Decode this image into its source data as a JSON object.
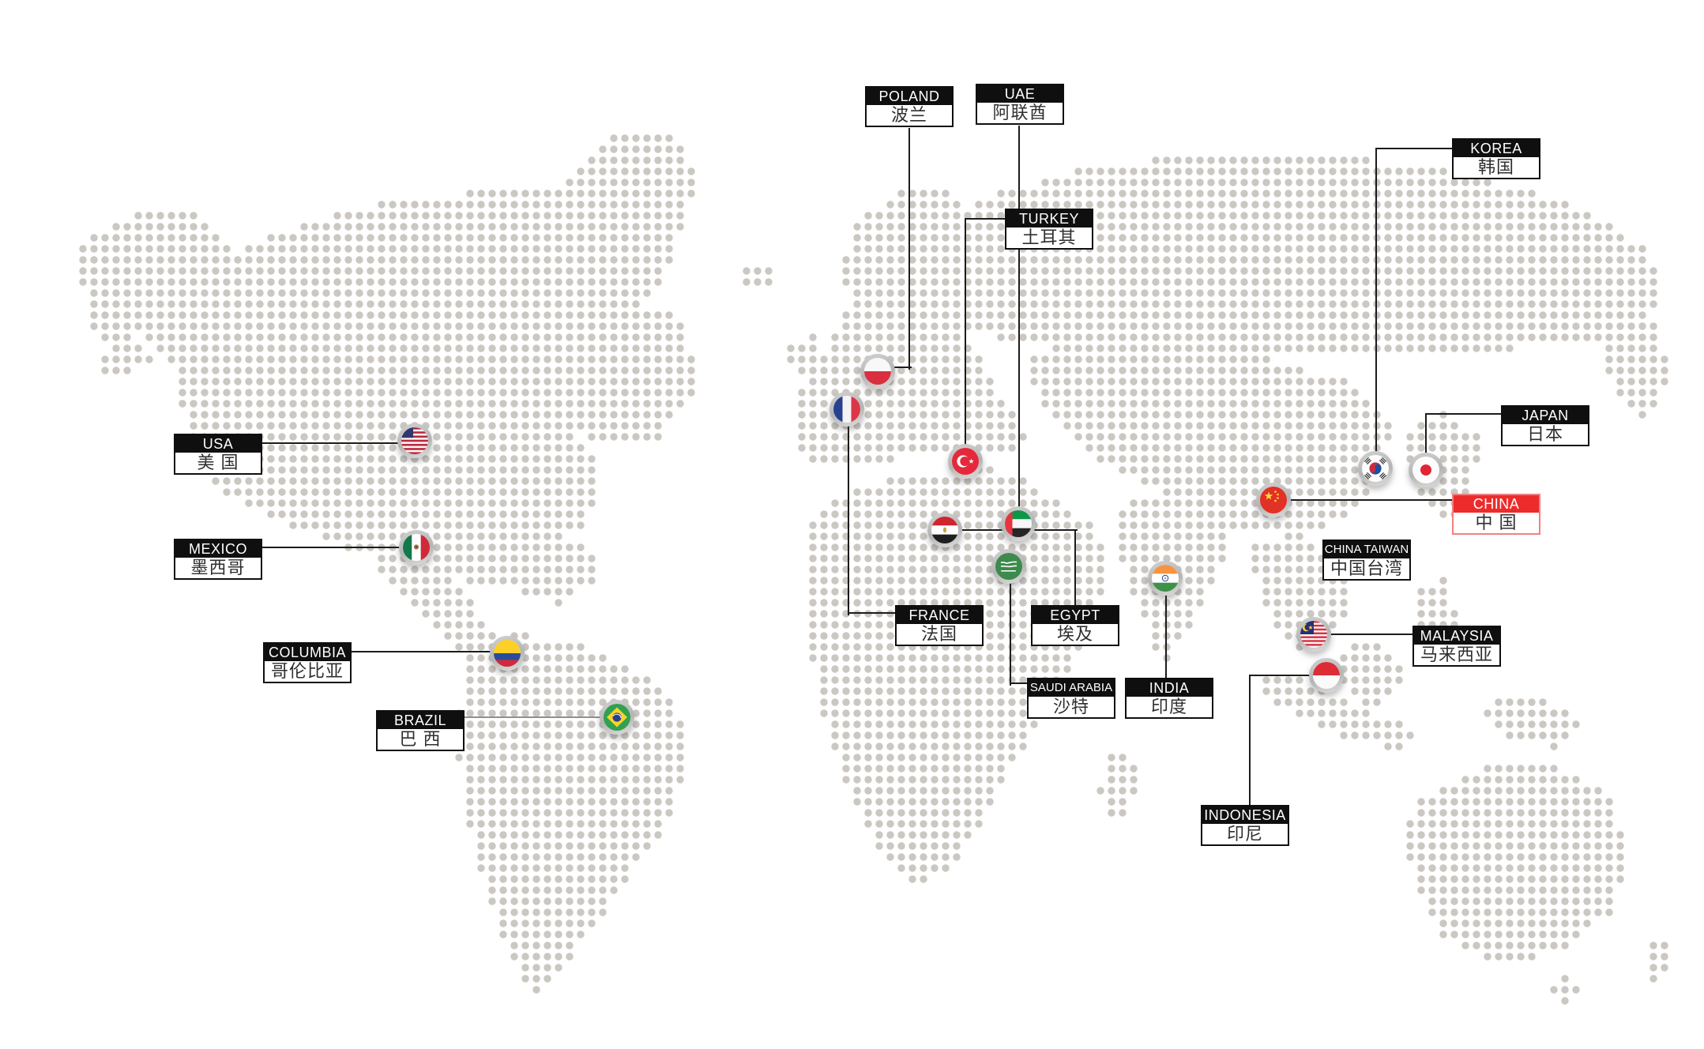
{
  "colors": {
    "highlight_red": "#ed2b2b",
    "label_bg": "#0f0f0f",
    "label_text": "#ffffff",
    "cjk_text": "#2f2f2f",
    "map_dot": "#cbc7c2",
    "connector": "#1c1c1c",
    "connector_light": "#8f8f8f"
  },
  "countries": [
    {
      "id": "poland",
      "label_en": "POLAND",
      "label_zh": "波兰",
      "flag_icon": "poland-flag-icon",
      "highlight": false
    },
    {
      "id": "uae",
      "label_en": "UAE",
      "label_zh": "阿联酋",
      "flag_icon": "uae-flag-icon",
      "highlight": false
    },
    {
      "id": "korea",
      "label_en": "KOREA",
      "label_zh": "韩国",
      "flag_icon": "korea-flag-icon",
      "highlight": false
    },
    {
      "id": "turkey",
      "label_en": "TURKEY",
      "label_zh": "土耳其",
      "flag_icon": "turkey-flag-icon",
      "highlight": false
    },
    {
      "id": "japan",
      "label_en": "JAPAN",
      "label_zh": "日本",
      "flag_icon": "japan-flag-icon",
      "highlight": false
    },
    {
      "id": "usa",
      "label_en": "USA",
      "label_zh": "美 国",
      "flag_icon": "usa-flag-icon",
      "highlight": false
    },
    {
      "id": "china",
      "label_en": "CHINA",
      "label_zh": "中 国",
      "flag_icon": "china-flag-icon",
      "highlight": true
    },
    {
      "id": "mexico",
      "label_en": "MEXICO",
      "label_zh": "墨西哥",
      "flag_icon": "mexico-flag-icon",
      "highlight": false
    },
    {
      "id": "china-taiwan",
      "label_en": "CHINA TAIWAN",
      "label_zh": "中国台湾",
      "flag_icon": null,
      "highlight": false
    },
    {
      "id": "france",
      "label_en": "FRANCE",
      "label_zh": "法国",
      "flag_icon": "france-flag-icon",
      "highlight": false
    },
    {
      "id": "egypt",
      "label_en": "EGYPT",
      "label_zh": "埃及",
      "flag_icon": "egypt-flag-icon",
      "highlight": false
    },
    {
      "id": "malaysia",
      "label_en": "MALAYSIA",
      "label_zh": "马来西亚",
      "flag_icon": "malaysia-flag-icon",
      "highlight": false
    },
    {
      "id": "columbia",
      "label_en": "COLUMBIA",
      "label_zh": "哥伦比亚",
      "flag_icon": "colombia-flag-icon",
      "highlight": false
    },
    {
      "id": "saudi-arabia",
      "label_en": "SAUDI ARABIA",
      "label_zh": "沙特",
      "flag_icon": "saudi-flag-icon",
      "highlight": false
    },
    {
      "id": "india",
      "label_en": "INDIA",
      "label_zh": "印度",
      "flag_icon": "india-flag-icon",
      "highlight": false
    },
    {
      "id": "brazil",
      "label_en": "BRAZIL",
      "label_zh": "巴 西",
      "flag_icon": "brazil-flag-icon",
      "highlight": false
    },
    {
      "id": "indonesia",
      "label_en": "INDONESIA",
      "label_zh": "印尼",
      "flag_icon": "indonesia-flag-icon",
      "highlight": false
    }
  ]
}
